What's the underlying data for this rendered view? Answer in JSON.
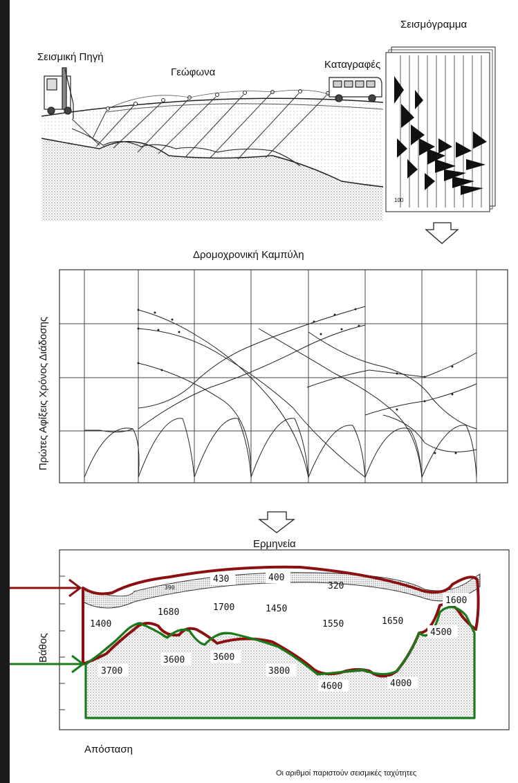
{
  "figure": {
    "seismic_source_label": "Σεισμική Πηγή",
    "geophones_label": "Γεώφωνα",
    "recorders_label": "Καταγραφές",
    "seismogram_label": "Σεισμόγραμμα",
    "seismogram_trace_label": "100",
    "traveltime_title": "Δρομοχρονική Καμπύλη",
    "traveltime_ylabel": "Πρώτες Αφίξεις Χρόνος Διάδοσης",
    "interpretation_title": "Ερμηνεία",
    "depth_label": "Βάθος",
    "distance_label": "Απόσταση",
    "footnote": "Οι αριθμοί παριστούν σεισμικές ταχύτητες",
    "velocities": {
      "v430": "430",
      "v400": "400",
      "v390": "390",
      "v320": "320",
      "v1400": "1400",
      "v1680": "1680",
      "v1700": "1700",
      "v1450": "1450",
      "v1550": "1550",
      "v1650": "1650",
      "v1600": "1600",
      "v4500": "4500",
      "v3700": "3700",
      "v3600a": "3600",
      "v3600b": "3600",
      "v3800": "3800",
      "v4600": "4600",
      "v4000": "4000"
    },
    "colors": {
      "upper_boundary": "#8b1111",
      "lower_boundary": "#1a7a1a",
      "ink": "#111111"
    }
  }
}
